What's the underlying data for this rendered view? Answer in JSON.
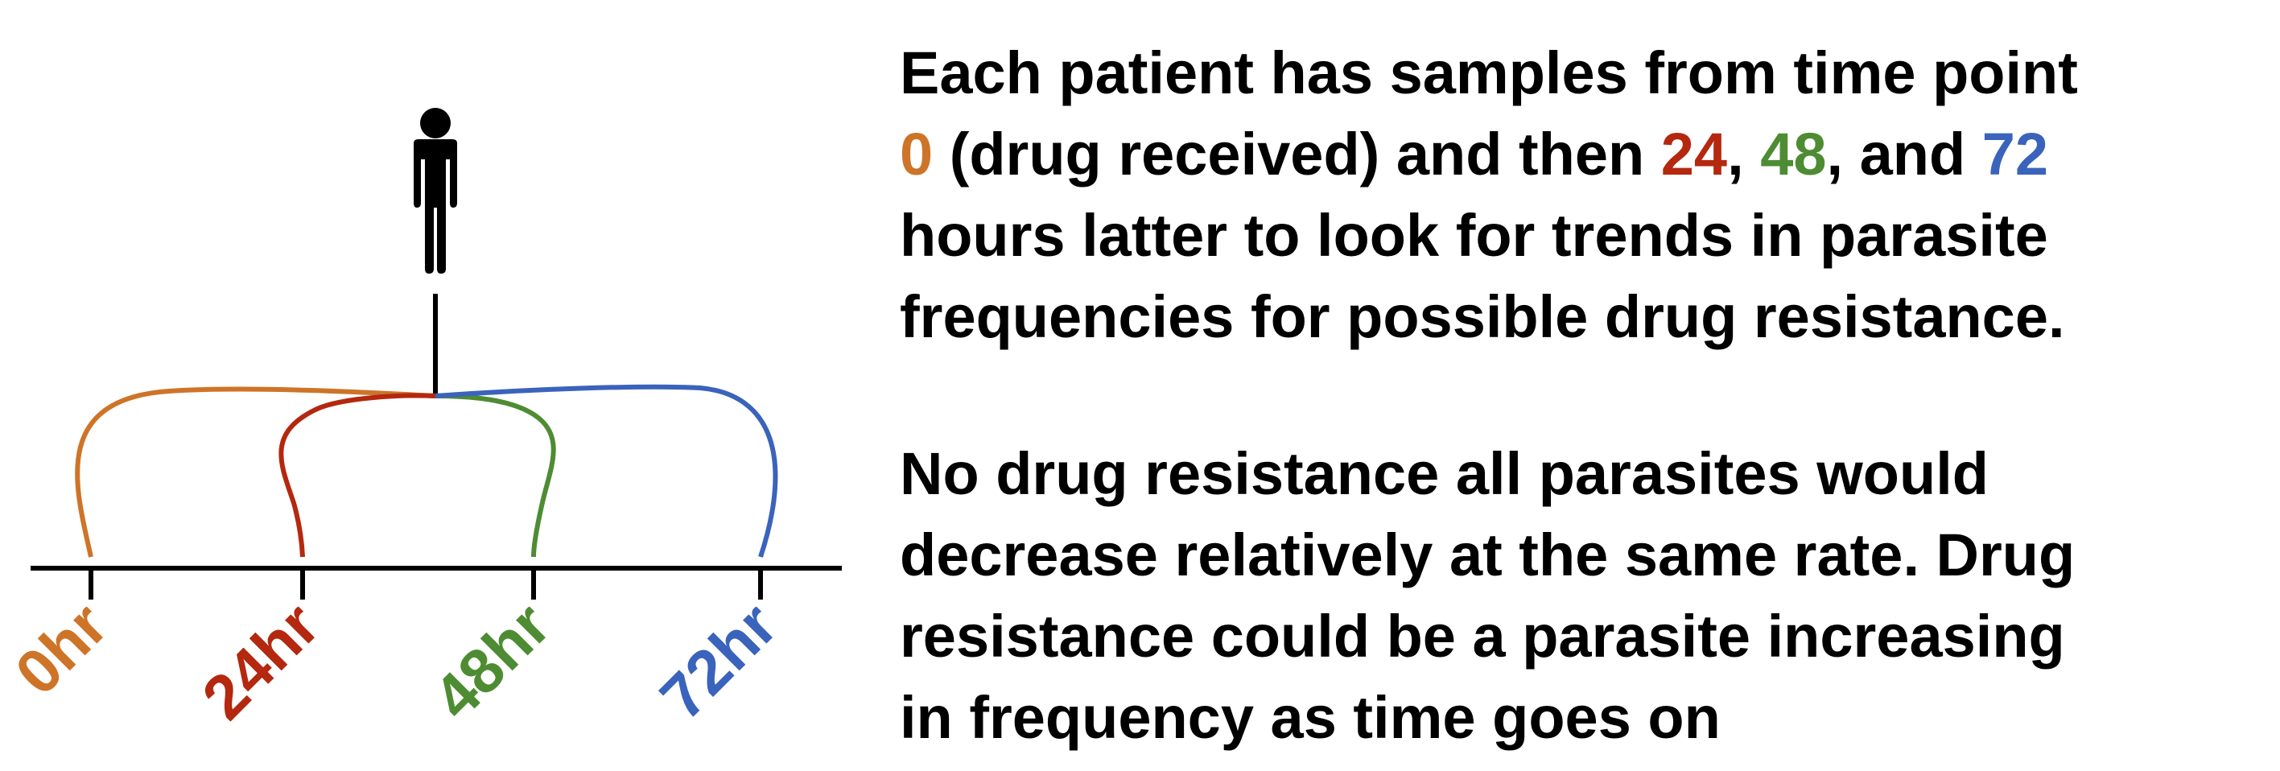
{
  "diagram": {
    "person_icon": "person-icon",
    "timepoints": [
      {
        "label": "0hr",
        "color": "#CE7428"
      },
      {
        "label": "24hr",
        "color": "#B4280F"
      },
      {
        "label": "48hr",
        "color": "#4E8C33"
      },
      {
        "label": "72hr",
        "color": "#3A63BC"
      }
    ]
  },
  "text": {
    "p1": {
      "l1": "Each patient has samples from time point",
      "t0": "0",
      "l2a": " (drug received) and then ",
      "t24": "24",
      "c1": ", ",
      "t48": "48",
      "c2": ", and ",
      "t72": "72",
      "l3": "hours latter to look for trends in parasite",
      "l4": "frequencies for possible drug resistance."
    },
    "p2": {
      "l1": "No drug resistance all parasites would",
      "l2": "decrease relatively at the same rate. Drug",
      "l3": "resistance could be a parasite increasing",
      "l4": "in frequency as time goes on"
    }
  }
}
